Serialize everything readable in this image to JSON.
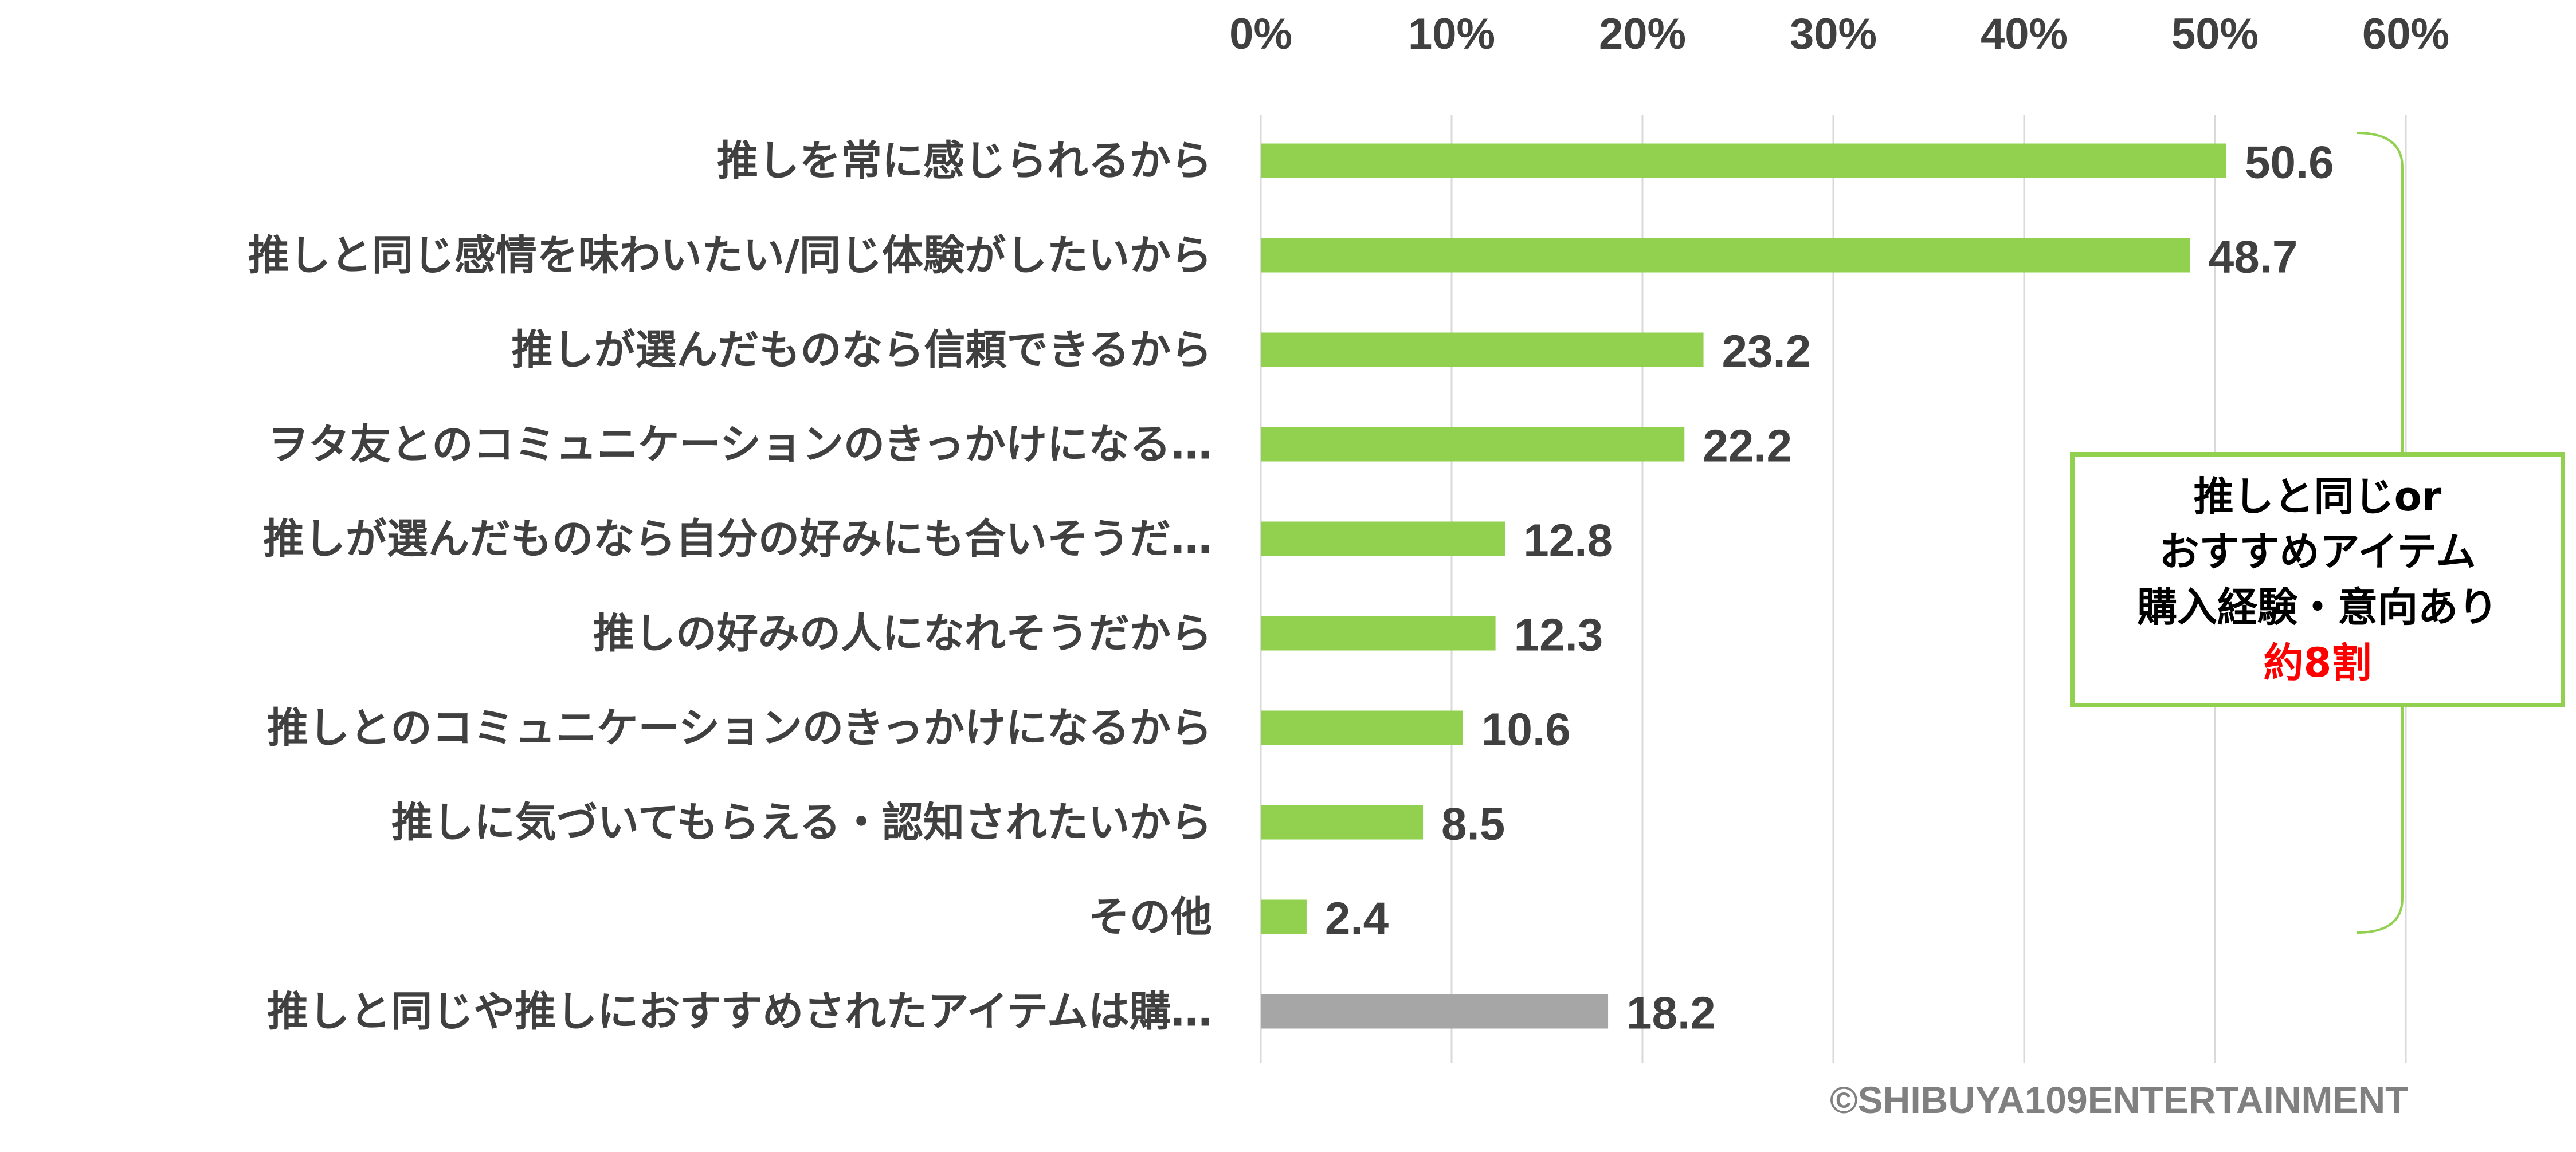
{
  "chart_data": {
    "type": "bar",
    "orientation": "horizontal",
    "categories": [
      "推しを常に感じられるから",
      "推しと同じ感情を味わいたい/同じ体験がしたいから",
      "推しが選んだものなら信頼できるから",
      "ヲタ友とのコミュニケーションのきっかけになる…",
      "推しが選んだものなら自分の好みにも合いそうだ…",
      "推しの好みの人になれそうだから",
      "推しとのコミュニケーションのきっかけになるから",
      "推しに気づいてもらえる・認知されたいから",
      "その他",
      "推しと同じや推しにおすすめされたアイテムは購…"
    ],
    "values": [
      50.6,
      48.7,
      23.2,
      22.2,
      12.8,
      12.3,
      10.6,
      8.5,
      2.4,
      18.2
    ],
    "value_labels": [
      "50.6",
      "48.7",
      "23.2",
      "22.2",
      "12.8",
      "12.3",
      "10.6",
      "8.5",
      "2.4",
      "18.2"
    ],
    "bar_colors": [
      "#92d050",
      "#92d050",
      "#92d050",
      "#92d050",
      "#92d050",
      "#92d050",
      "#92d050",
      "#92d050",
      "#92d050",
      "#a6a6a6"
    ],
    "xlim": [
      0,
      60
    ],
    "x_ticks": [
      0,
      10,
      20,
      30,
      40,
      50,
      60
    ],
    "x_tick_labels": [
      "0%",
      "10%",
      "20%",
      "30%",
      "40%",
      "50%",
      "60%"
    ],
    "x_axis_position": "top",
    "grid": true,
    "title": "",
    "xlabel": "",
    "ylabel": ""
  },
  "annotation": {
    "lines": [
      "推しと同じor",
      "おすすめアイテム",
      "購入経験・意向あり"
    ],
    "highlight": "約8割",
    "highlight_color": "#ff0000",
    "border_color": "#92d050",
    "bracket_color": "#92d050"
  },
  "copyright": "©SHIBUYA109ENTERTAINMENT",
  "colors": {
    "bar": "#92d050",
    "bar_other": "#a6a6a6",
    "text": "#404040",
    "grid": "#d9d9d9"
  }
}
